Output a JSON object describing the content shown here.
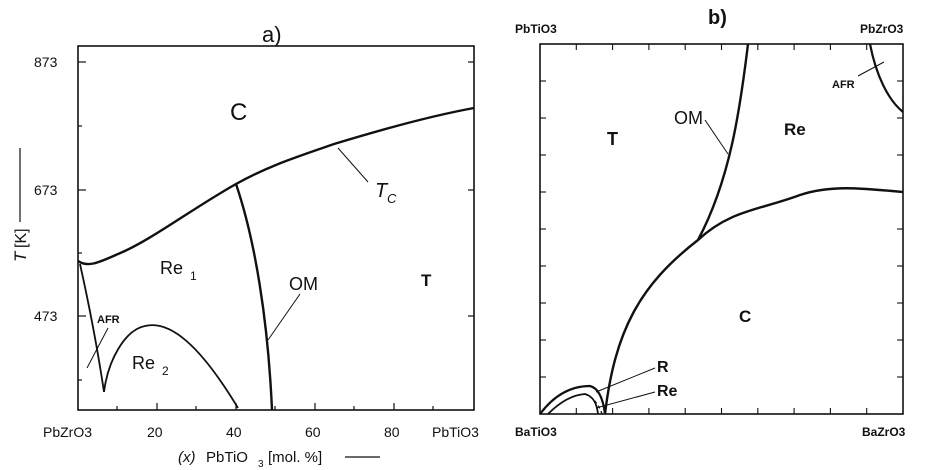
{
  "panel_a": {
    "label": "a)",
    "yticks": [
      "873",
      "673",
      "473"
    ],
    "xticks": [
      "PbZrO3",
      "20",
      "40",
      "60",
      "80",
      "PbTiO3"
    ],
    "ylabel_T": "T",
    "ylabel_unit": "[K]",
    "xlabel_x": "(x)",
    "xlabel_compound": "PbTiO",
    "xlabel_sub": "3",
    "xlabel_unit": "[mol. %]",
    "regions": {
      "C": "C",
      "Re1": "Re",
      "Re1_sub": "1",
      "Re2": "Re",
      "Re2_sub": "2",
      "T": "T",
      "AFR": "AFR",
      "OM": "OM",
      "TC": "T",
      "TC_sub": "C"
    }
  },
  "panel_b": {
    "label": "b)",
    "corners": {
      "top_left": "PbTiO3",
      "top_right": "PbZrO3",
      "bottom_left": "BaTiO3",
      "bottom_right": "BaZrO3"
    },
    "regions": {
      "T": "T",
      "OM": "OM",
      "Re_top": "Re",
      "AFR": "AFR",
      "C": "C",
      "R": "R",
      "Re_bottom": "Re"
    }
  }
}
